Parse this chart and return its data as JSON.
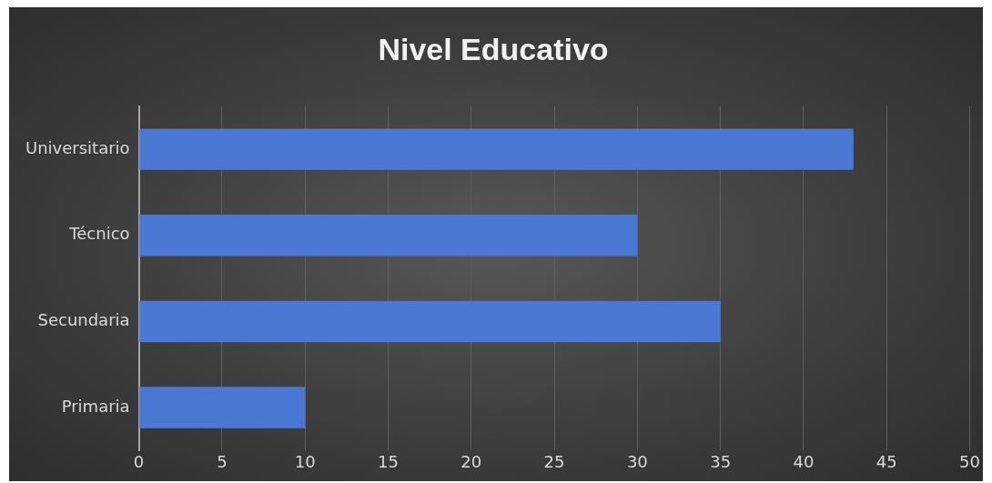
{
  "chart_data": {
    "type": "bar",
    "title": "Nivel Educativo",
    "orientation": "horizontal",
    "categories": [
      "Universitario",
      "Técnico",
      "Secundaria",
      "Primaria"
    ],
    "values": [
      43,
      30,
      35,
      10
    ],
    "color": "#4a78d2",
    "xlim": [
      0,
      50
    ],
    "xticks": [
      0,
      5,
      10,
      15,
      20,
      25,
      30,
      35,
      40,
      45,
      50
    ],
    "grid": "x",
    "legend": false
  }
}
